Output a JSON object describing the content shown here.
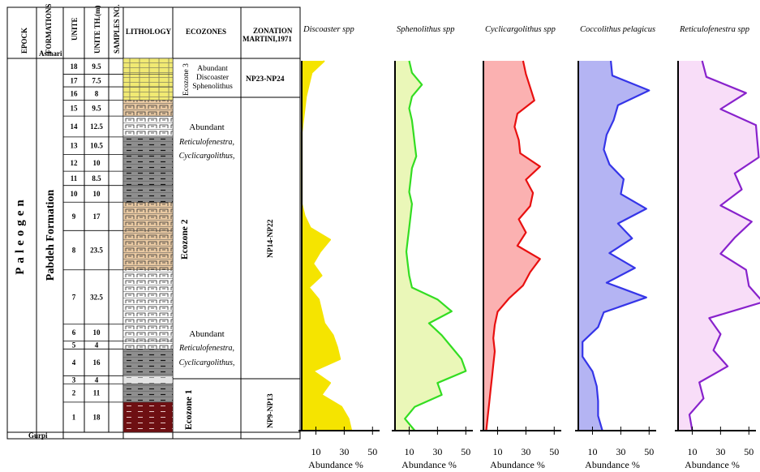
{
  "column_headers": {
    "epoch": "EPOCK",
    "formations": "FORMATIONS",
    "unite": "UNITE",
    "unite_th": "UNITE TH.(m)",
    "samples": "SAMPLES NO.",
    "lithology": "LITHOLOGY",
    "ecozones": "ECOZONES",
    "zonation_line1": "ZONATION",
    "zonation_line2": "MARTINI,1971"
  },
  "epoch_name": "Paleogen",
  "formation_names": {
    "top": "Asmari",
    "main": "Pabdeh Formation",
    "bottom": "Gurpi"
  },
  "units": [
    {
      "unit": "18",
      "th": "9.5",
      "litho": "yellow"
    },
    {
      "unit": "17",
      "th": "7.5",
      "litho": "yellow"
    },
    {
      "unit": "16",
      "th": "8",
      "litho": "yellow"
    },
    {
      "unit": "15",
      "th": "9.5",
      "litho": "tan"
    },
    {
      "unit": "14",
      "th": "12.5",
      "litho": "whitebrick"
    },
    {
      "unit": "13",
      "th": "10.5",
      "litho": "grey"
    },
    {
      "unit": "12",
      "th": "10",
      "litho": "grey"
    },
    {
      "unit": "11",
      "th": "8.5",
      "litho": "grey"
    },
    {
      "unit": "10",
      "th": "10",
      "litho": "grey"
    },
    {
      "unit": "9",
      "th": "17",
      "litho": "tan"
    },
    {
      "unit": "8",
      "th": "23.5",
      "litho": "tan"
    },
    {
      "unit": "7",
      "th": "32.5",
      "litho": "whitebrick"
    },
    {
      "unit": "6",
      "th": "10",
      "litho": "whitebrick"
    },
    {
      "unit": "5",
      "th": "4",
      "litho": "whitebrick"
    },
    {
      "unit": "4",
      "th": "16",
      "litho": "grey"
    },
    {
      "unit": "3",
      "th": "4",
      "litho": "lightgrey"
    },
    {
      "unit": "2",
      "th": "11",
      "litho": "grey"
    },
    {
      "unit": "1",
      "th": "18",
      "litho": "maroon"
    }
  ],
  "ecozones": {
    "ecozone3": {
      "label": "Ecozone 3",
      "lines": [
        "Abundant",
        "Discoaster",
        "Sphenolithus"
      ]
    },
    "ecozone2": {
      "label": "Ecozone 2",
      "upper_lines": [
        "Abundant",
        "Reticulofenestra,",
        "Cyclicargolithus,"
      ],
      "lower_lines": [
        "Abundant",
        "Reticulofenestra,",
        "Cyclicargolithus,"
      ]
    },
    "ecozone1": {
      "label": "Ecozone 1"
    }
  },
  "zonation": [
    "NP23-NP24",
    "NP14-NP22",
    "NP9-NP13"
  ],
  "chart_data": [
    {
      "type": "area",
      "title": "Discoaster spp",
      "xlabel": "Abundance %",
      "xticks": [
        10,
        30,
        50
      ],
      "xlim": [
        0,
        55
      ],
      "color": "#f5e400",
      "fill": "#f5e400",
      "depth_unit_order": "top_to_bottom",
      "values": [
        16,
        7,
        5,
        3,
        2,
        1,
        0,
        0,
        0,
        0,
        0,
        0,
        0,
        2,
        6,
        20,
        13,
        8,
        14,
        5,
        12,
        14,
        16,
        22,
        25,
        27,
        8,
        20,
        14,
        28,
        33,
        35
      ]
    },
    {
      "type": "area",
      "title": "Sphenolithus spp",
      "xlabel": "Abundance %",
      "xticks": [
        10,
        30,
        50
      ],
      "xlim": [
        0,
        55
      ],
      "color": "#33dd22",
      "fill": "#eaf7b8",
      "values": [
        10,
        12,
        19,
        12,
        10,
        12,
        13,
        14,
        15,
        12,
        11,
        10,
        12,
        11,
        10,
        9,
        8,
        9,
        10,
        12,
        30,
        40,
        24,
        33,
        40,
        47,
        50,
        30,
        33,
        14,
        7,
        14
      ]
    },
    {
      "type": "area",
      "title": "Cyclicargolithus spp",
      "xlabel": "Abundance %",
      "xticks": [
        10,
        30,
        50
      ],
      "xlim": [
        0,
        55
      ],
      "color": "#e81010",
      "fill": "#fbb1b1",
      "values": [
        28,
        30,
        33,
        36,
        24,
        22,
        25,
        26,
        40,
        30,
        35,
        33,
        25,
        30,
        24,
        40,
        33,
        28,
        18,
        10,
        8,
        7,
        8,
        7,
        6,
        5,
        4,
        3,
        2
      ]
    },
    {
      "type": "area",
      "title": "Coccolithus pelagicus",
      "xlabel": "Abundance %",
      "xticks": [
        10,
        30,
        50
      ],
      "xlim": [
        0,
        55
      ],
      "color": "#3535e8",
      "fill": "#b4b4f3",
      "values": [
        23,
        24,
        50,
        28,
        25,
        20,
        18,
        22,
        32,
        30,
        48,
        28,
        38,
        22,
        40,
        20,
        48,
        18,
        14,
        3,
        3,
        10,
        13,
        14,
        14,
        17
      ]
    },
    {
      "type": "area",
      "title": "Reticulofenestra spp",
      "xlabel": "Abundance %",
      "xticks": [
        10,
        30,
        50
      ],
      "xlim": [
        0,
        55
      ],
      "color": "#8822cc",
      "fill": "#f8ddf8",
      "values": [
        17,
        20,
        48,
        30,
        55,
        56,
        57,
        40,
        45,
        30,
        52,
        40,
        30,
        48,
        50,
        60,
        22,
        30,
        25,
        35,
        15,
        18,
        8,
        10
      ]
    }
  ]
}
